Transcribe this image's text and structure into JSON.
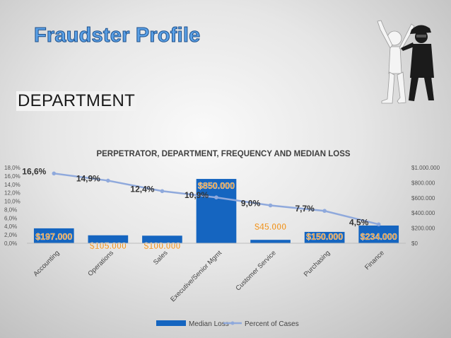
{
  "slide": {
    "title": "Fraudster Profile",
    "section": "DEPARTMENT"
  },
  "chart_data": {
    "type": "bar",
    "title": "PERPETRATOR, DEPARTMENT, FREQUENCY AND MEDIAN LOSS",
    "categories": [
      "Accounting",
      "Operations",
      "Sales",
      "Executive/Senior Mgmt",
      "Customer Service",
      "Purchasing",
      "Finance"
    ],
    "series": [
      {
        "name": "Median Loss",
        "kind": "bar",
        "axis": "right",
        "values": [
          197000,
          105000,
          100000,
          850000,
          45000,
          150000,
          234000
        ],
        "labels": [
          "$197.000",
          "$105.000",
          "$100.000",
          "$850.000",
          "$45.000",
          "$150.000",
          "$234.000"
        ]
      },
      {
        "name": "Percent of Cases",
        "kind": "line",
        "axis": "left",
        "values": [
          16.6,
          14.9,
          12.4,
          10.9,
          9.0,
          7.7,
          4.5
        ],
        "labels": [
          "16,6%",
          "14,9%",
          "12,4%",
          "10,9%",
          "9,0%",
          "7,7%",
          "4,5%"
        ]
      }
    ],
    "left_axis": {
      "ylim": [
        0,
        18
      ],
      "ticks": [
        "0,0%",
        "2,0%",
        "4,0%",
        "6,0%",
        "8,0%",
        "10,0%",
        "12,0%",
        "14,0%",
        "16,0%",
        "18,0%"
      ]
    },
    "right_axis": {
      "ylim": [
        0,
        1000000
      ],
      "ticks": [
        "$0",
        "$200.000",
        "$400.000",
        "$600.000",
        "$800.000",
        "$1.000.000"
      ]
    },
    "legend": "bottom",
    "colors": {
      "bar": "#1565c0",
      "line": "#8fa9dc",
      "bar_label": "#e8962e"
    }
  }
}
